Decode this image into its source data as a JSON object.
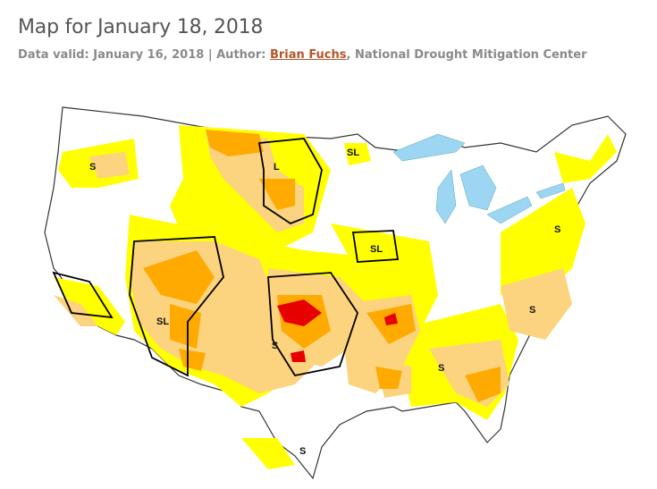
{
  "header": {
    "title": "Map for January 18, 2018",
    "valid_prefix": "Data valid: ",
    "valid_date": "January 16, 2018",
    "separator": " | ",
    "author_prefix": "Author: ",
    "author_name": "Brian Fuchs",
    "author_suffix": ", National Drought Mitigation Center"
  },
  "map": {
    "impact_labels": [
      "S",
      "L",
      "SL",
      "SL",
      "SL",
      "S",
      "S",
      "S",
      "S",
      "S"
    ],
    "colors": {
      "none": "#ffffff",
      "d0": "#ffff00",
      "d1": "#fcd37f",
      "d2": "#ffaa00",
      "d3": "#e60000",
      "water": "#9cd6f2",
      "boundary": "#000000"
    }
  }
}
